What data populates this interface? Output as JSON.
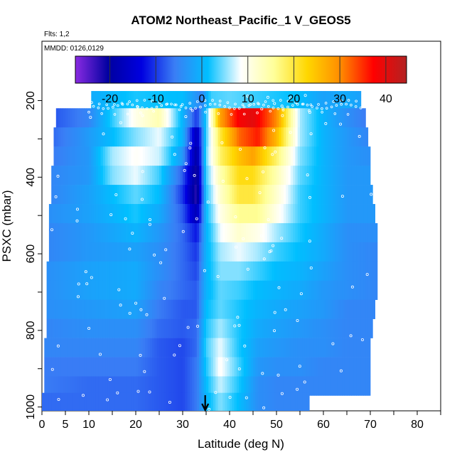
{
  "chart_data": {
    "type": "heatmap",
    "title": "ATOM2 Northeast_Pacific_1 V_GEOS5",
    "flights_label": "Flts: 1,2",
    "mmdd_label": "MMDD: 0126,0129",
    "xlabel": "Latitude (deg N)",
    "ylabel": "PSXC (mbar)",
    "xlim": [
      0,
      85
    ],
    "ylim": [
      1010,
      45
    ],
    "x_ticks": [
      0,
      5,
      10,
      20,
      30,
      40,
      50,
      60,
      70,
      80
    ],
    "x_minor_ticks": [
      15,
      25,
      35,
      45,
      55,
      65,
      75,
      85
    ],
    "y_ticks": [
      200,
      400,
      600,
      800,
      1000
    ],
    "y_minor_ticks": [
      300,
      500,
      700,
      900
    ],
    "colorbar": {
      "ticks": [
        -20,
        -10,
        0,
        10,
        20,
        30,
        40
      ],
      "range": [
        -27.5,
        44.5
      ],
      "colors": [
        "#8a2be2",
        "#0000a0",
        "#0000e0",
        "#3a7ef5",
        "#00bfff",
        "#ffffff",
        "#ffff99",
        "#ffd700",
        "#ff8c00",
        "#ff0000",
        "#b22222"
      ]
    },
    "arrow_latitude": 34.8,
    "pressure_levels": [
      220,
      270,
      320,
      370,
      420,
      470,
      520,
      570,
      620,
      670,
      720,
      770,
      820,
      870,
      920,
      970
    ],
    "rows": [
      {
        "p": 200,
        "x0": 10.5,
        "x1": 68.0,
        "lats": [
          10,
          20,
          30,
          34,
          36,
          40,
          45,
          50,
          55,
          60,
          65,
          68
        ],
        "vals": [
          -1,
          2,
          1,
          -5,
          3,
          4,
          3,
          2,
          1,
          -2,
          -1,
          -2
        ]
      },
      {
        "p": 245,
        "x0": 3.0,
        "x1": 69.0,
        "lats": [
          3,
          10,
          20,
          25,
          30,
          33,
          35,
          38,
          42,
          45,
          50,
          55,
          60,
          65,
          69
        ],
        "vals": [
          -8,
          -5,
          10,
          14,
          0,
          -10,
          2,
          28,
          38,
          40,
          30,
          6,
          0,
          -4,
          -6
        ]
      },
      {
        "p": 295,
        "x0": 2.5,
        "x1": 69.5,
        "lats": [
          2.5,
          8,
          15,
          20,
          25,
          30,
          33,
          35,
          38,
          42,
          46,
          50,
          55,
          60,
          65,
          69.5
        ],
        "vals": [
          -7,
          -4,
          1,
          5,
          8,
          0,
          -18,
          3,
          20,
          32,
          36,
          26,
          6,
          0,
          -3,
          -5
        ]
      },
      {
        "p": 345,
        "x0": 2.5,
        "x1": 70.0,
        "lats": [
          2.5,
          10,
          15,
          20,
          25,
          30,
          33,
          35,
          38,
          42,
          45,
          50,
          55,
          60,
          65,
          70
        ],
        "vals": [
          -6,
          -3,
          6,
          9,
          7,
          -3,
          -20,
          4,
          18,
          25,
          28,
          18,
          5,
          0,
          -3,
          -4
        ]
      },
      {
        "p": 395,
        "x0": 2.0,
        "x1": 70.0,
        "lats": [
          2,
          10,
          15,
          20,
          25,
          30,
          33,
          35,
          38,
          42,
          45,
          50,
          55,
          60,
          65,
          70
        ],
        "vals": [
          -5,
          -3,
          5,
          8,
          3,
          -8,
          -22,
          3,
          14,
          22,
          22,
          14,
          4,
          0,
          -3,
          -3
        ]
      },
      {
        "p": 445,
        "x0": 2.0,
        "x1": 70.5,
        "lats": [
          2,
          10,
          20,
          25,
          30,
          33,
          35,
          38,
          42,
          45,
          50,
          55,
          60,
          65,
          70.5
        ],
        "vals": [
          -5,
          -2,
          4,
          1,
          -10,
          -23,
          2,
          12,
          20,
          20,
          12,
          3,
          0,
          -3,
          -3
        ]
      },
      {
        "p": 495,
        "x0": 1.5,
        "x1": 71.0,
        "lats": [
          1.5,
          10,
          20,
          25,
          30,
          33,
          35,
          38,
          42,
          46,
          50,
          55,
          60,
          65,
          71
        ],
        "vals": [
          -4,
          -2,
          2,
          -1,
          -8,
          -18,
          1,
          10,
          16,
          16,
          10,
          3,
          0,
          -3,
          -3
        ]
      },
      {
        "p": 545,
        "x0": 1.5,
        "x1": 71.5,
        "lats": [
          1.5,
          10,
          20,
          25,
          30,
          33,
          35,
          38,
          42,
          46,
          50,
          55,
          60,
          65,
          71.5
        ],
        "vals": [
          -5,
          -3,
          0,
          -3,
          -7,
          -12,
          0,
          8,
          12,
          10,
          6,
          2,
          -1,
          -4,
          -4
        ]
      },
      {
        "p": 595,
        "x0": 1.5,
        "x1": 71.5,
        "lats": [
          1.5,
          10,
          20,
          25,
          30,
          33,
          35,
          38,
          42,
          46,
          50,
          55,
          60,
          65,
          71.5
        ],
        "vals": [
          -5,
          -3,
          -2,
          -4,
          -7,
          -10,
          0,
          6,
          8,
          6,
          3,
          1,
          -1,
          -4,
          -5
        ]
      },
      {
        "p": 645,
        "x0": 1.0,
        "x1": 71.5,
        "lats": [
          1,
          10,
          20,
          25,
          30,
          33,
          35,
          38,
          42,
          46,
          50,
          55,
          60,
          65,
          71.5
        ],
        "vals": [
          -4,
          -2,
          -1,
          -4,
          -7,
          -9,
          0,
          5,
          5,
          3,
          1,
          0,
          -2,
          -4,
          -5
        ]
      },
      {
        "p": 695,
        "x0": 1.0,
        "x1": 71.5,
        "lats": [
          1,
          10,
          20,
          25,
          30,
          33,
          35,
          38,
          42,
          46,
          50,
          55,
          60,
          65,
          71.5
        ],
        "vals": [
          -4,
          -2,
          -1,
          -5,
          -7,
          -8,
          0,
          4,
          3,
          1,
          0,
          -1,
          -3,
          -4,
          -5
        ]
      },
      {
        "p": 745,
        "x0": 1.0,
        "x1": 71.0,
        "lats": [
          1,
          10,
          20,
          25,
          30,
          33,
          35,
          38,
          42,
          46,
          50,
          55,
          60,
          65,
          71
        ],
        "vals": [
          -4,
          -3,
          -2,
          -6,
          -8,
          -8,
          1,
          4,
          2,
          0,
          -1,
          -2,
          -3,
          -5,
          -5
        ]
      },
      {
        "p": 795,
        "x0": 1.0,
        "x1": 70.5,
        "lats": [
          1,
          10,
          20,
          25,
          30,
          33,
          35,
          38,
          42,
          46,
          50,
          55,
          60,
          65,
          70.5
        ],
        "vals": [
          -5,
          -4,
          -4,
          -7,
          -8,
          -7,
          2,
          6,
          2,
          -1,
          -2,
          -3,
          -4,
          -5,
          -5
        ]
      },
      {
        "p": 845,
        "x0": 0.5,
        "x1": 70.0,
        "lats": [
          0.5,
          10,
          20,
          25,
          30,
          33,
          35,
          38,
          42,
          46,
          50,
          55,
          60,
          65,
          70
        ],
        "vals": [
          -5,
          -5,
          -5,
          -8,
          -9,
          -7,
          3,
          8,
          2,
          -2,
          -3,
          -4,
          -4,
          -5,
          -5
        ]
      },
      {
        "p": 895,
        "x0": 0.5,
        "x1": 70.0,
        "lats": [
          0.5,
          10,
          20,
          25,
          30,
          33,
          35,
          38,
          42,
          46,
          50,
          55,
          60,
          65,
          70
        ],
        "vals": [
          -6,
          -6,
          -6,
          -8,
          -9,
          -6,
          2,
          9,
          3,
          -3,
          -4,
          -4,
          -5,
          -5,
          -5
        ]
      },
      {
        "p": 945,
        "x0": 0.5,
        "x1": 70.0,
        "lats": [
          0.5,
          10,
          20,
          25,
          30,
          33,
          35,
          38,
          42,
          46,
          50,
          55,
          60,
          65,
          70
        ],
        "vals": [
          -6,
          -7,
          -7,
          -8,
          -9,
          -6,
          1,
          7,
          2,
          -4,
          -5,
          -5,
          -5,
          -5,
          -5
        ]
      },
      {
        "p": 988,
        "x0": 0.0,
        "x1": 57.0,
        "lats": [
          0,
          10,
          20,
          25,
          30,
          33,
          35,
          38,
          42,
          46,
          50,
          57
        ],
        "vals": [
          -7,
          -7,
          -7,
          -8,
          -9,
          -6,
          0,
          5,
          1,
          -4,
          -5,
          -5
        ]
      }
    ]
  }
}
